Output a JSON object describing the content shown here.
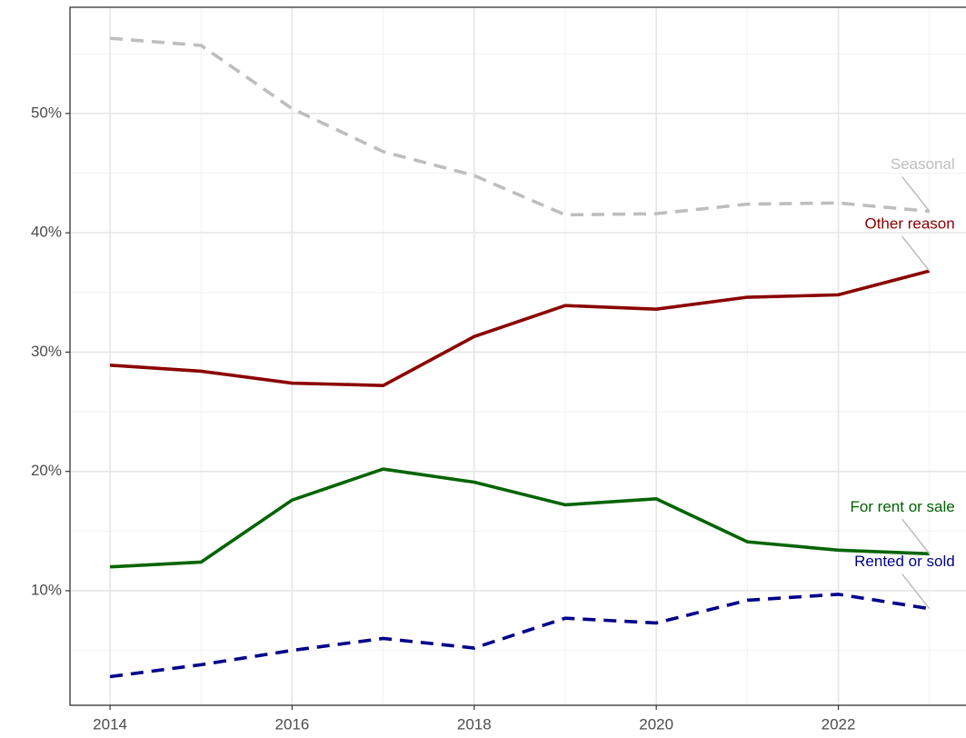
{
  "chart_data": {
    "type": "line",
    "x": [
      2014,
      2015,
      2016,
      2017,
      2018,
      2019,
      2020,
      2021,
      2022,
      2023
    ],
    "series": [
      {
        "name": "Seasonal",
        "color": "#bebebe",
        "linetype": "dashed",
        "values": [
          56.3,
          55.7,
          50.4,
          46.8,
          44.8,
          41.5,
          41.6,
          42.4,
          42.5,
          41.8
        ]
      },
      {
        "name": "Other reason",
        "color": "#8b0000",
        "linetype": "solid",
        "values": [
          28.9,
          28.4,
          27.4,
          27.2,
          31.3,
          33.9,
          33.6,
          34.6,
          34.8,
          36.8
        ]
      },
      {
        "name": "For rent or sale",
        "color": "#006400",
        "linetype": "solid",
        "values": [
          12.0,
          12.4,
          17.6,
          20.2,
          19.1,
          17.2,
          17.7,
          14.1,
          13.4,
          13.1
        ]
      },
      {
        "name": "Rented or sold",
        "color": "#00008b",
        "linetype": "dashed",
        "values": [
          2.8,
          3.8,
          5.0,
          6.0,
          5.2,
          7.7,
          7.3,
          9.2,
          9.7,
          8.5
        ]
      }
    ],
    "xlim": [
      2013.56,
      2024.45
    ],
    "ylim": [
      0.4,
      58.9
    ],
    "xticks": [
      2014,
      2016,
      2018,
      2020,
      2022
    ],
    "xminor": [
      2015,
      2017,
      2019,
      2021,
      2023
    ],
    "yticks": [
      {
        "value": 10,
        "label": "10%"
      },
      {
        "value": 20,
        "label": "20%"
      },
      {
        "value": 30,
        "label": "30%"
      },
      {
        "value": 40,
        "label": "40%"
      },
      {
        "value": 50,
        "label": "50%"
      }
    ],
    "yminor": [
      5,
      15,
      25,
      35,
      45,
      55
    ],
    "grid": true
  }
}
